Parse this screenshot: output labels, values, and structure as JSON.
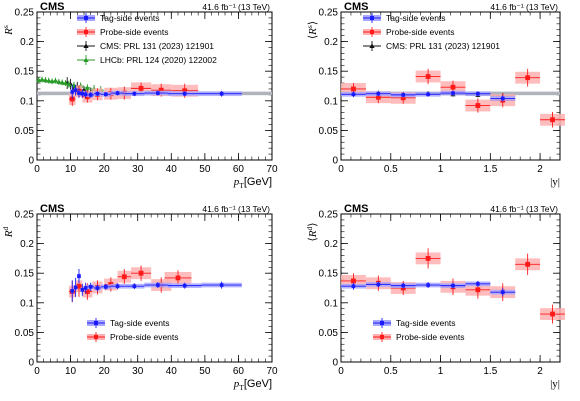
{
  "chart_data": [
    {
      "id": "tl",
      "type": "scatter",
      "cms_label": "CMS",
      "lumi_label": "41.6 fb⁻¹ (13 TeV)",
      "ylabel_main": "R",
      "ylabel_sub": "s",
      "ylabel_wrap": "",
      "xlabel_main": "p",
      "xlabel_sub": "T",
      "xlabel_unit": "[GeV]",
      "xlim": [
        0,
        70
      ],
      "ylim": [
        0,
        0.25
      ],
      "xticks": [
        "0",
        "10",
        "20",
        "30",
        "40",
        "50",
        "60",
        "70"
      ],
      "yticks": [
        "0",
        "0.05",
        "0.1",
        "0.15",
        "0.2",
        "0.25"
      ],
      "band": {
        "x": [
          0,
          70
        ],
        "y": 0.1125,
        "dy": 0.003,
        "color": "#b0b4bc"
      },
      "series": [
        {
          "name": "Tag-side events",
          "color": "#1a1aff",
          "marker": "square",
          "dy": 0.004,
          "points": [
            [
              10.5,
              0.115,
              0.5,
              0.012
            ],
            [
              11.5,
              0.118,
              0.5,
              0.009
            ],
            [
              12.5,
              0.113,
              0.5,
              0.008
            ],
            [
              13.5,
              0.112,
              0.5,
              0.007
            ],
            [
              14.5,
              0.111,
              0.5,
              0.006
            ],
            [
              16,
              0.11,
              1,
              0.005
            ],
            [
              18,
              0.112,
              1,
              0.004
            ],
            [
              20.5,
              0.111,
              1.5,
              0.004
            ],
            [
              24,
              0.113,
              2,
              0.004
            ],
            [
              29,
              0.112,
              3,
              0.004
            ],
            [
              36,
              0.113,
              4,
              0.004
            ],
            [
              44,
              0.112,
              5,
              0.004
            ],
            [
              55,
              0.112,
              6,
              0.005
            ]
          ]
        },
        {
          "name": "Probe-side events",
          "color": "#ff1a1a",
          "marker": "square",
          "dy": 0.01,
          "points": [
            [
              10.5,
              0.103,
              1,
              0.012
            ],
            [
              12.5,
              0.116,
              1,
              0.01
            ],
            [
              15,
              0.107,
              1.5,
              0.01
            ],
            [
              18,
              0.111,
              1.5,
              0.01
            ],
            [
              22,
              0.112,
              2,
              0.01
            ],
            [
              26,
              0.113,
              2,
              0.011
            ],
            [
              31,
              0.121,
              3,
              0.01
            ],
            [
              37,
              0.118,
              3,
              0.011
            ],
            [
              44,
              0.117,
              4,
              0.012
            ]
          ]
        },
        {
          "name": "CMS: PRL 131 (2023) 121901",
          "color": "#111111",
          "marker": "triangle",
          "dy": 0,
          "points": [
            [
              9,
              0.13,
              0.5,
              0.01
            ],
            [
              10,
              0.128,
              0.5,
              0.009
            ],
            [
              11,
              0.122,
              0.5,
              0.008
            ],
            [
              12,
              0.124,
              0.5,
              0.008
            ],
            [
              13,
              0.12,
              0.5,
              0.008
            ],
            [
              14,
              0.118,
              0.5,
              0.007
            ],
            [
              15,
              0.116,
              0.5,
              0.007
            ],
            [
              16,
              0.115,
              0.5,
              0.007
            ]
          ]
        },
        {
          "name": "LHCb: PRL 124 (2020) 122002",
          "color": "#2a9a2a",
          "marker": "triangle",
          "dy": 0,
          "points": [
            [
              0.5,
              0.135,
              0.5,
              0.005
            ],
            [
              1.5,
              0.136,
              0.5,
              0.005
            ],
            [
              2.5,
              0.135,
              0.5,
              0.005
            ],
            [
              3.5,
              0.134,
              0.5,
              0.005
            ],
            [
              4.5,
              0.133,
              0.5,
              0.005
            ],
            [
              5.5,
              0.134,
              0.5,
              0.005
            ],
            [
              6.5,
              0.132,
              0.5,
              0.005
            ],
            [
              7.5,
              0.131,
              0.5,
              0.005
            ],
            [
              8.5,
              0.13,
              0.5,
              0.005
            ],
            [
              9.5,
              0.128,
              0.5,
              0.006
            ],
            [
              11,
              0.126,
              1,
              0.006
            ],
            [
              13,
              0.125,
              1,
              0.006
            ],
            [
              15,
              0.122,
              1,
              0.006
            ],
            [
              17,
              0.12,
              1,
              0.007
            ],
            [
              19,
              0.118,
              1,
              0.007
            ]
          ]
        }
      ]
    },
    {
      "id": "tr",
      "type": "scatter",
      "cms_label": "CMS",
      "lumi_label": "41.6 fb⁻¹ (13 TeV)",
      "ylabel_main": "R",
      "ylabel_sub": "s",
      "ylabel_wrap": "angle",
      "xlabel_main": "|y|",
      "xlabel_sub": "",
      "xlabel_unit": "",
      "xlim": [
        0,
        2.2
      ],
      "ylim": [
        0,
        0.25
      ],
      "xticks": [
        "0",
        "0.5",
        "1",
        "1.5",
        "2"
      ],
      "yticks": [
        "0",
        "0.05",
        "0.1",
        "0.15",
        "0.2",
        "0.25"
      ],
      "band": {
        "x": [
          0,
          2.2
        ],
        "y": 0.1125,
        "dy": 0.003,
        "color": "#b0b4bc"
      },
      "series": [
        {
          "name": "Tag-side events",
          "color": "#1a1aff",
          "marker": "square",
          "dy": 0.004,
          "points": [
            [
              0.125,
              0.111,
              0.125,
              0.005
            ],
            [
              0.375,
              0.112,
              0.125,
              0.004
            ],
            [
              0.625,
              0.11,
              0.125,
              0.004
            ],
            [
              0.875,
              0.111,
              0.125,
              0.004
            ],
            [
              1.125,
              0.113,
              0.125,
              0.004
            ],
            [
              1.375,
              0.112,
              0.125,
              0.004
            ],
            [
              1.625,
              0.104,
              0.125,
              0.005
            ]
          ]
        },
        {
          "name": "Probe-side events",
          "color": "#ff1a1a",
          "marker": "square",
          "dy": 0.01,
          "points": [
            [
              0.125,
              0.12,
              0.125,
              0.01
            ],
            [
              0.375,
              0.106,
              0.125,
              0.01
            ],
            [
              0.625,
              0.105,
              0.125,
              0.01
            ],
            [
              0.875,
              0.141,
              0.125,
              0.013
            ],
            [
              1.125,
              0.123,
              0.125,
              0.011
            ],
            [
              1.375,
              0.092,
              0.125,
              0.012
            ],
            [
              1.625,
              0.101,
              0.125,
              0.012
            ],
            [
              1.875,
              0.139,
              0.125,
              0.015
            ],
            [
              2.125,
              0.068,
              0.125,
              0.013
            ]
          ]
        },
        {
          "name": "CMS: PRL 131 (2023) 121901",
          "color": "#111111",
          "marker": "triangle",
          "dy": 0,
          "points": [
            [
              0.125,
              0.112,
              0.125,
              0.004
            ],
            [
              0.375,
              0.113,
              0.125,
              0.004
            ],
            [
              0.625,
              0.111,
              0.125,
              0.004
            ],
            [
              0.875,
              0.112,
              0.125,
              0.004
            ],
            [
              1.125,
              0.111,
              0.125,
              0.004
            ],
            [
              1.375,
              0.11,
              0.125,
              0.004
            ],
            [
              1.625,
              0.108,
              0.125,
              0.005
            ]
          ]
        }
      ]
    },
    {
      "id": "bl",
      "type": "scatter",
      "cms_label": "CMS",
      "lumi_label": "41.6 fb⁻¹ (13 TeV)",
      "ylabel_main": "R",
      "ylabel_sub": "d",
      "ylabel_wrap": "",
      "xlabel_main": "p",
      "xlabel_sub": "T",
      "xlabel_unit": "[GeV]",
      "xlim": [
        0,
        70
      ],
      "ylim": [
        0,
        0.25
      ],
      "xticks": [
        "0",
        "10",
        "20",
        "30",
        "40",
        "50",
        "60",
        "70"
      ],
      "yticks": [
        "0",
        "0.05",
        "0.1",
        "0.15",
        "0.2",
        "0.25"
      ],
      "band": null,
      "series": [
        {
          "name": "Tag-side events",
          "color": "#1a1aff",
          "marker": "square",
          "dy": 0.004,
          "points": [
            [
              10.5,
              0.12,
              0.5,
              0.018
            ],
            [
              11.5,
              0.126,
              0.5,
              0.016
            ],
            [
              12.5,
              0.145,
              0.5,
              0.012
            ],
            [
              13.5,
              0.122,
              0.5,
              0.01
            ],
            [
              14.5,
              0.125,
              0.5,
              0.009
            ],
            [
              16,
              0.127,
              1,
              0.007
            ],
            [
              18,
              0.125,
              1,
              0.006
            ],
            [
              20.5,
              0.127,
              1.5,
              0.005
            ],
            [
              24,
              0.128,
              2,
              0.005
            ],
            [
              29,
              0.128,
              3,
              0.005
            ],
            [
              36,
              0.13,
              4,
              0.005
            ],
            [
              44,
              0.129,
              5,
              0.005
            ],
            [
              55,
              0.13,
              6,
              0.006
            ]
          ]
        },
        {
          "name": "Probe-side events",
          "color": "#ff1a1a",
          "marker": "square",
          "dy": 0.01,
          "points": [
            [
              10.5,
              0.119,
              1,
              0.018
            ],
            [
              12.5,
              0.128,
              1,
              0.018
            ],
            [
              15,
              0.119,
              1.5,
              0.014
            ],
            [
              18,
              0.126,
              1.5,
              0.012
            ],
            [
              22,
              0.131,
              2,
              0.012
            ],
            [
              26,
              0.144,
              2,
              0.013
            ],
            [
              31,
              0.15,
              3,
              0.013
            ],
            [
              37,
              0.13,
              3,
              0.013
            ],
            [
              42,
              0.142,
              4,
              0.013
            ]
          ]
        }
      ]
    },
    {
      "id": "br",
      "type": "scatter",
      "cms_label": "CMS",
      "lumi_label": "41.6 fb⁻¹ (13 TeV)",
      "ylabel_main": "R",
      "ylabel_sub": "d",
      "ylabel_wrap": "angle",
      "xlabel_main": "|y|",
      "xlabel_sub": "",
      "xlabel_unit": "",
      "xlim": [
        0,
        2.2
      ],
      "ylim": [
        0,
        0.25
      ],
      "xticks": [
        "0",
        "0.5",
        "1",
        "1.5",
        "2"
      ],
      "yticks": [
        "0",
        "0.05",
        "0.1",
        "0.15",
        "0.2",
        "0.25"
      ],
      "band": null,
      "series": [
        {
          "name": "Tag-side events",
          "color": "#1a1aff",
          "marker": "square",
          "dy": 0.004,
          "points": [
            [
              0.125,
              0.128,
              0.125,
              0.006
            ],
            [
              0.375,
              0.131,
              0.125,
              0.005
            ],
            [
              0.625,
              0.129,
              0.125,
              0.005
            ],
            [
              0.875,
              0.13,
              0.125,
              0.005
            ],
            [
              1.125,
              0.129,
              0.125,
              0.005
            ],
            [
              1.375,
              0.132,
              0.125,
              0.005
            ],
            [
              1.625,
              0.118,
              0.125,
              0.007
            ]
          ]
        },
        {
          "name": "Probe-side events",
          "color": "#ff1a1a",
          "marker": "square",
          "dy": 0.01,
          "points": [
            [
              0.125,
              0.137,
              0.125,
              0.013
            ],
            [
              0.375,
              0.133,
              0.125,
              0.013
            ],
            [
              0.625,
              0.125,
              0.125,
              0.012
            ],
            [
              0.875,
              0.175,
              0.125,
              0.017
            ],
            [
              1.125,
              0.127,
              0.125,
              0.014
            ],
            [
              1.375,
              0.122,
              0.125,
              0.015
            ],
            [
              1.625,
              0.118,
              0.125,
              0.015
            ],
            [
              1.875,
              0.165,
              0.125,
              0.018
            ],
            [
              2.125,
              0.081,
              0.125,
              0.016
            ]
          ]
        }
      ]
    }
  ]
}
